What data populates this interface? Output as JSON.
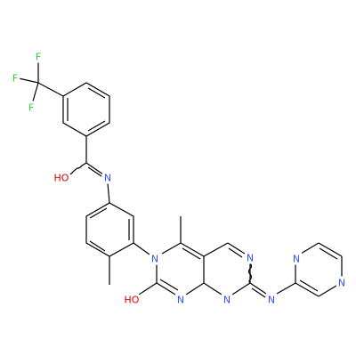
{
  "atoms": [
    {
      "label": "F"
    },
    {
      "label": "F"
    },
    {
      "label": "F"
    },
    {
      "label": "HO"
    },
    {
      "label": "N"
    },
    {
      "label": "N"
    },
    {
      "label": "HO"
    },
    {
      "label": "N"
    },
    {
      "label": "N"
    },
    {
      "label": "N"
    },
    {
      "label": "N"
    },
    {
      "label": "N"
    },
    {
      "label": "N"
    }
  ]
}
